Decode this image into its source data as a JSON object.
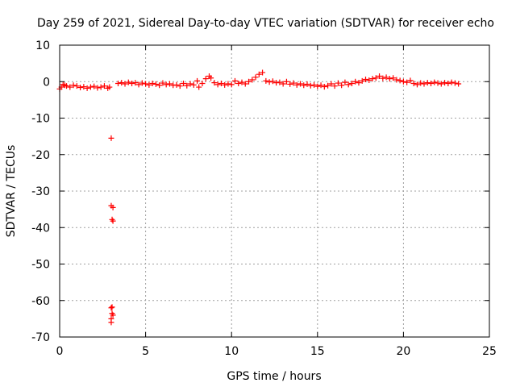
{
  "chart_data": {
    "type": "scatter",
    "title": "Day 259 of 2021, Sidereal Day-to-day VTEC variation (SDTVAR) for receiver echo",
    "xlabel": "GPS time / hours",
    "ylabel": "SDTVAR / TECUs",
    "xlim": [
      0,
      25
    ],
    "ylim": [
      -70,
      10
    ],
    "xticks": [
      0,
      5,
      10,
      15,
      20,
      25
    ],
    "yticks": [
      10,
      0,
      -10,
      -20,
      -30,
      -40,
      -50,
      -60,
      -70
    ],
    "xtick_labels": [
      "0",
      "5",
      "10",
      "15",
      "20",
      "25"
    ],
    "ytick_labels": [
      "10",
      "0",
      "-10",
      "-20",
      "-30",
      "-40",
      "-50",
      "-60",
      "-70"
    ],
    "grid": true,
    "marker": "+",
    "color": "#ff0000",
    "series": [
      {
        "name": "SDTVAR",
        "points": [
          [
            0.0,
            -2.0
          ],
          [
            0.1,
            -1.5
          ],
          [
            0.2,
            -0.8
          ],
          [
            0.3,
            -1.0
          ],
          [
            0.4,
            -1.2
          ],
          [
            0.6,
            -1.5
          ],
          [
            0.8,
            -1.0
          ],
          [
            1.0,
            -1.2
          ],
          [
            1.2,
            -1.6
          ],
          [
            1.4,
            -1.4
          ],
          [
            1.6,
            -1.8
          ],
          [
            1.8,
            -1.5
          ],
          [
            2.0,
            -1.3
          ],
          [
            2.2,
            -1.7
          ],
          [
            2.4,
            -1.5
          ],
          [
            2.6,
            -1.2
          ],
          [
            2.8,
            -1.8
          ],
          [
            2.9,
            -1.5
          ],
          [
            3.0,
            -15.5
          ],
          [
            3.0,
            -34.0
          ],
          [
            3.1,
            -34.5
          ],
          [
            3.05,
            -37.8
          ],
          [
            3.1,
            -38.2
          ],
          [
            3.0,
            -62.0
          ],
          [
            3.05,
            -63.5
          ],
          [
            3.0,
            -65.0
          ],
          [
            3.1,
            -64.0
          ],
          [
            3.0,
            -66.0
          ],
          [
            3.05,
            -61.8
          ],
          [
            3.4,
            -0.5
          ],
          [
            3.6,
            -0.3
          ],
          [
            3.8,
            -0.6
          ],
          [
            4.0,
            -0.2
          ],
          [
            4.2,
            -0.5
          ],
          [
            4.4,
            -0.3
          ],
          [
            4.6,
            -0.8
          ],
          [
            4.8,
            -0.4
          ],
          [
            5.0,
            -0.6
          ],
          [
            5.2,
            -0.9
          ],
          [
            5.4,
            -0.5
          ],
          [
            5.6,
            -0.7
          ],
          [
            5.8,
            -1.0
          ],
          [
            6.0,
            -0.4
          ],
          [
            6.2,
            -0.8
          ],
          [
            6.4,
            -0.6
          ],
          [
            6.6,
            -1.0
          ],
          [
            6.8,
            -0.9
          ],
          [
            7.0,
            -1.2
          ],
          [
            7.2,
            -0.5
          ],
          [
            7.4,
            -1.1
          ],
          [
            7.6,
            -0.6
          ],
          [
            7.8,
            -0.9
          ],
          [
            8.0,
            0.2
          ],
          [
            8.1,
            -1.5
          ],
          [
            8.3,
            -0.5
          ],
          [
            8.5,
            0.8
          ],
          [
            8.7,
            1.5
          ],
          [
            8.8,
            1.0
          ],
          [
            9.0,
            -0.3
          ],
          [
            9.2,
            -0.8
          ],
          [
            9.4,
            -0.5
          ],
          [
            9.6,
            -0.9
          ],
          [
            9.8,
            -0.6
          ],
          [
            10.0,
            -0.8
          ],
          [
            10.2,
            0.2
          ],
          [
            10.4,
            -0.5
          ],
          [
            10.6,
            -0.2
          ],
          [
            10.8,
            -0.6
          ],
          [
            11.0,
            0.0
          ],
          [
            11.2,
            0.5
          ],
          [
            11.4,
            1.2
          ],
          [
            11.6,
            2.0
          ],
          [
            11.8,
            2.5
          ],
          [
            12.0,
            0.2
          ],
          [
            12.2,
            -0.1
          ],
          [
            12.4,
            0.1
          ],
          [
            12.6,
            -0.3
          ],
          [
            12.8,
            -0.2
          ],
          [
            13.0,
            -0.6
          ],
          [
            13.2,
            0.0
          ],
          [
            13.4,
            -0.7
          ],
          [
            13.6,
            -0.4
          ],
          [
            13.8,
            -0.9
          ],
          [
            14.0,
            -0.6
          ],
          [
            14.2,
            -1.0
          ],
          [
            14.4,
            -0.7
          ],
          [
            14.6,
            -1.1
          ],
          [
            14.8,
            -0.9
          ],
          [
            15.0,
            -1.3
          ],
          [
            15.2,
            -1.0
          ],
          [
            15.4,
            -1.4
          ],
          [
            15.6,
            -1.1
          ],
          [
            15.8,
            -0.6
          ],
          [
            16.0,
            -1.2
          ],
          [
            16.2,
            -0.4
          ],
          [
            16.4,
            -1.0
          ],
          [
            16.6,
            -0.2
          ],
          [
            16.8,
            -0.8
          ],
          [
            17.0,
            -0.5
          ],
          [
            17.2,
            0.0
          ],
          [
            17.4,
            -0.3
          ],
          [
            17.6,
            0.2
          ],
          [
            17.8,
            0.6
          ],
          [
            18.0,
            0.4
          ],
          [
            18.2,
            0.8
          ],
          [
            18.4,
            1.0
          ],
          [
            18.6,
            1.5
          ],
          [
            18.8,
            0.9
          ],
          [
            19.0,
            1.2
          ],
          [
            19.2,
            0.8
          ],
          [
            19.4,
            1.0
          ],
          [
            19.6,
            0.5
          ],
          [
            19.8,
            0.3
          ],
          [
            20.0,
            0.0
          ],
          [
            20.2,
            -0.2
          ],
          [
            20.4,
            0.3
          ],
          [
            20.6,
            -0.5
          ],
          [
            20.8,
            -0.8
          ],
          [
            21.0,
            -0.4
          ],
          [
            21.2,
            -0.6
          ],
          [
            21.4,
            -0.3
          ],
          [
            21.6,
            -0.5
          ],
          [
            21.8,
            -0.2
          ],
          [
            22.0,
            -0.4
          ],
          [
            22.2,
            -0.6
          ],
          [
            22.4,
            -0.3
          ],
          [
            22.6,
            -0.5
          ],
          [
            22.8,
            -0.2
          ],
          [
            23.0,
            -0.4
          ],
          [
            23.2,
            -0.6
          ]
        ]
      }
    ]
  }
}
